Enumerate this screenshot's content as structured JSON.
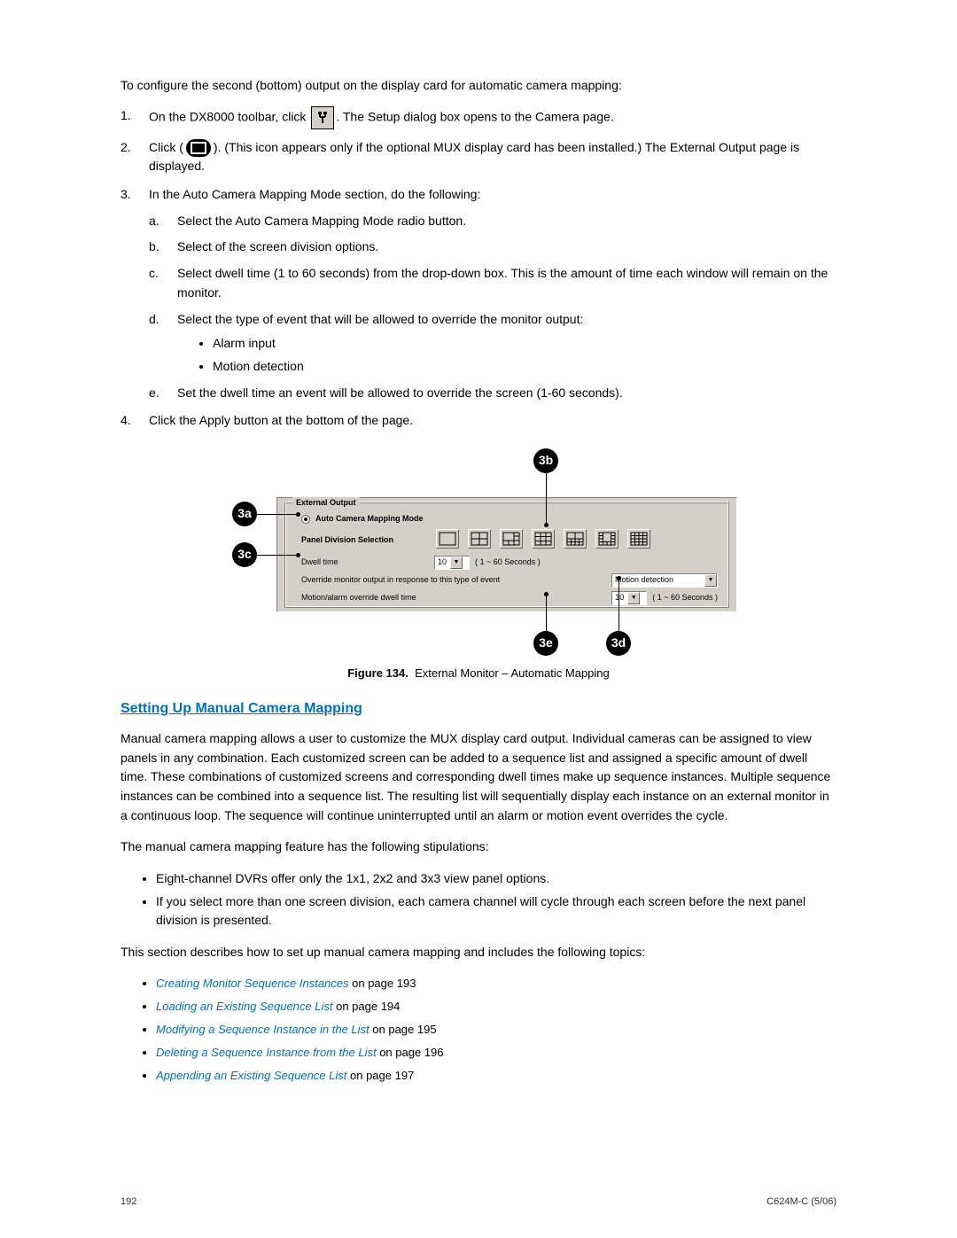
{
  "intro": "To configure the second (bottom) output on the display card for automatic camera mapping:",
  "steps": {
    "s1_pre": "On the DX8000 toolbar, click",
    "s1_post": ". The Setup dialog box opens to the Camera page.",
    "s2_pre": "Click",
    "s2_post": ". (This icon appears only if the optional MUX display card has been installed.) The External Output page is displayed.",
    "s3": "In the Auto Camera Mapping Mode section, do the following:",
    "s3a": "Select the Auto Camera Mapping Mode radio button.",
    "s3b": "Select of the screen division options.",
    "s3c": "Select dwell time (1 to 60 seconds) from the drop-down box. This is the amount of time each window will remain on the monitor.",
    "s3d": "Select the type of event that will be allowed to override the monitor output:",
    "s3d_bullets": [
      "Alarm input",
      "Motion detection"
    ],
    "s3e": "Set the dwell time an event will be allowed to override the screen (1-60 seconds).",
    "s4": "Click the Apply button at the bottom of the page."
  },
  "figure": {
    "callouts": {
      "a": "3a",
      "b": "3b",
      "c": "3c",
      "d": "3d",
      "e": "3e"
    },
    "panel": {
      "fieldset_title": "External Output",
      "radio_label": "Auto Camera Mapping Mode",
      "division_label": "Panel Division Selection",
      "dwell_label": "Dwell time",
      "dwell_value": "10",
      "dwell_hint": "( 1 ~ 60 Seconds )",
      "override_label": "Override monitor output in response to this type of event",
      "override_value": "Motion detection",
      "override_dwell_label": "Motion/alarm override dwell time",
      "override_dwell_value": "10",
      "override_dwell_hint": "( 1 ~ 60 Seconds )"
    },
    "division_grids": [
      1,
      4,
      6,
      9,
      10,
      13,
      16
    ]
  },
  "caption_label": "Figure 134.",
  "caption_text": "External Monitor – Automatic Mapping",
  "section_heading": "Setting Up Manual Camera Mapping",
  "para1": "Manual camera mapping allows a user to customize the MUX display card output. Individual cameras can be assigned to view panels in any combination. Each customized screen can be added to a sequence list and assigned a specific amount of dwell time. These combinations of customized screens and corresponding dwell times make up sequence instances. Multiple sequence instances can be combined into a sequence list. The resulting list will sequentially display each instance on an external monitor in a continuous loop. The sequence will continue uninterrupted until an alarm or motion event overrides the cycle.",
  "para2": "The manual camera mapping feature has the following stipulations:",
  "stipulations": [
    "Eight-channel DVRs offer only the 1x1, 2x2 and 3x3 view panel options.",
    "If you select more than one screen division, each camera channel will cycle through each screen before the next panel division is presented."
  ],
  "para3": "This section describes how to set up manual camera mapping and includes the following topics:",
  "topics": [
    {
      "link": "Creating Monitor Sequence Instances",
      "suffix": " on page 193"
    },
    {
      "link": "Loading an Existing Sequence List",
      "suffix": " on page 194"
    },
    {
      "link": "Modifying a Sequence Instance in the List",
      "suffix": " on page 195"
    },
    {
      "link": "Deleting a Sequence Instance from the List",
      "suffix": " on page 196"
    },
    {
      "link": "Appending an Existing Sequence List",
      "suffix": " on page 197"
    }
  ],
  "footer": {
    "page": "192",
    "docref": "C624M-C (5/06)"
  },
  "colors": {
    "link": "#0070c0",
    "panel_bg": "#d4d0c8",
    "callout": "#000000"
  }
}
